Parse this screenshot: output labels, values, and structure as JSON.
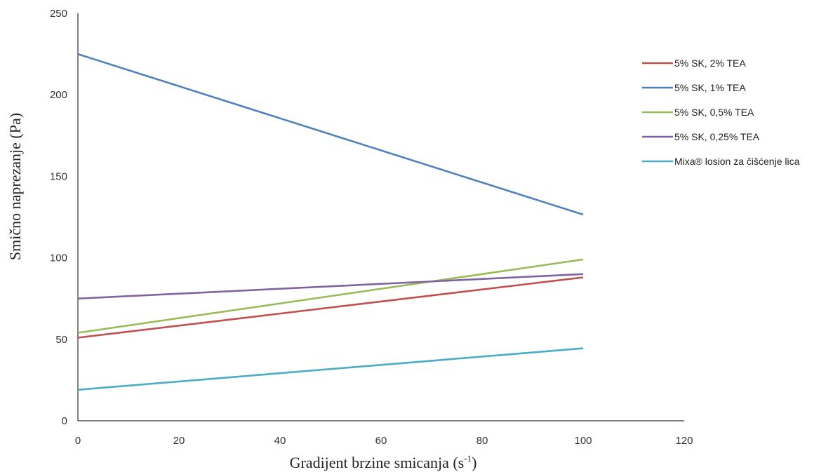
{
  "chart_data": {
    "type": "line",
    "xlabel": "Gradijent brzine smicanja (s",
    "xlabel_sup": "-1",
    "xlabel_end": ")",
    "ylabel": "Smično naprezanje (Pa)",
    "xlim": [
      0,
      120
    ],
    "ylim": [
      0,
      250
    ],
    "xticks": [
      "0",
      "20",
      "40",
      "60",
      "80",
      "100",
      "120"
    ],
    "yticks": [
      "0",
      "50",
      "100",
      "150",
      "200",
      "250"
    ],
    "grid": false,
    "legend_position": "right",
    "series": [
      {
        "name": "5% SK, 2% TEA",
        "color": "#c0504d",
        "x": [
          0,
          100
        ],
        "y": [
          51,
          88
        ]
      },
      {
        "name": "5% SK, 1% TEA",
        "color": "#4f81bd",
        "x": [
          0,
          100
        ],
        "y": [
          225,
          126.5
        ]
      },
      {
        "name": "5% SK, 0,5% TEA",
        "color": "#9bbb59",
        "x": [
          0,
          100
        ],
        "y": [
          54,
          99
        ]
      },
      {
        "name": "5% SK, 0,25% TEA",
        "color": "#8064a2",
        "x": [
          0,
          100
        ],
        "y": [
          75,
          90
        ]
      },
      {
        "name": "Mixa® losion za čišćenje lica",
        "color": "#4bacc6",
        "x": [
          0,
          100
        ],
        "y": [
          19,
          44.5
        ]
      }
    ]
  }
}
